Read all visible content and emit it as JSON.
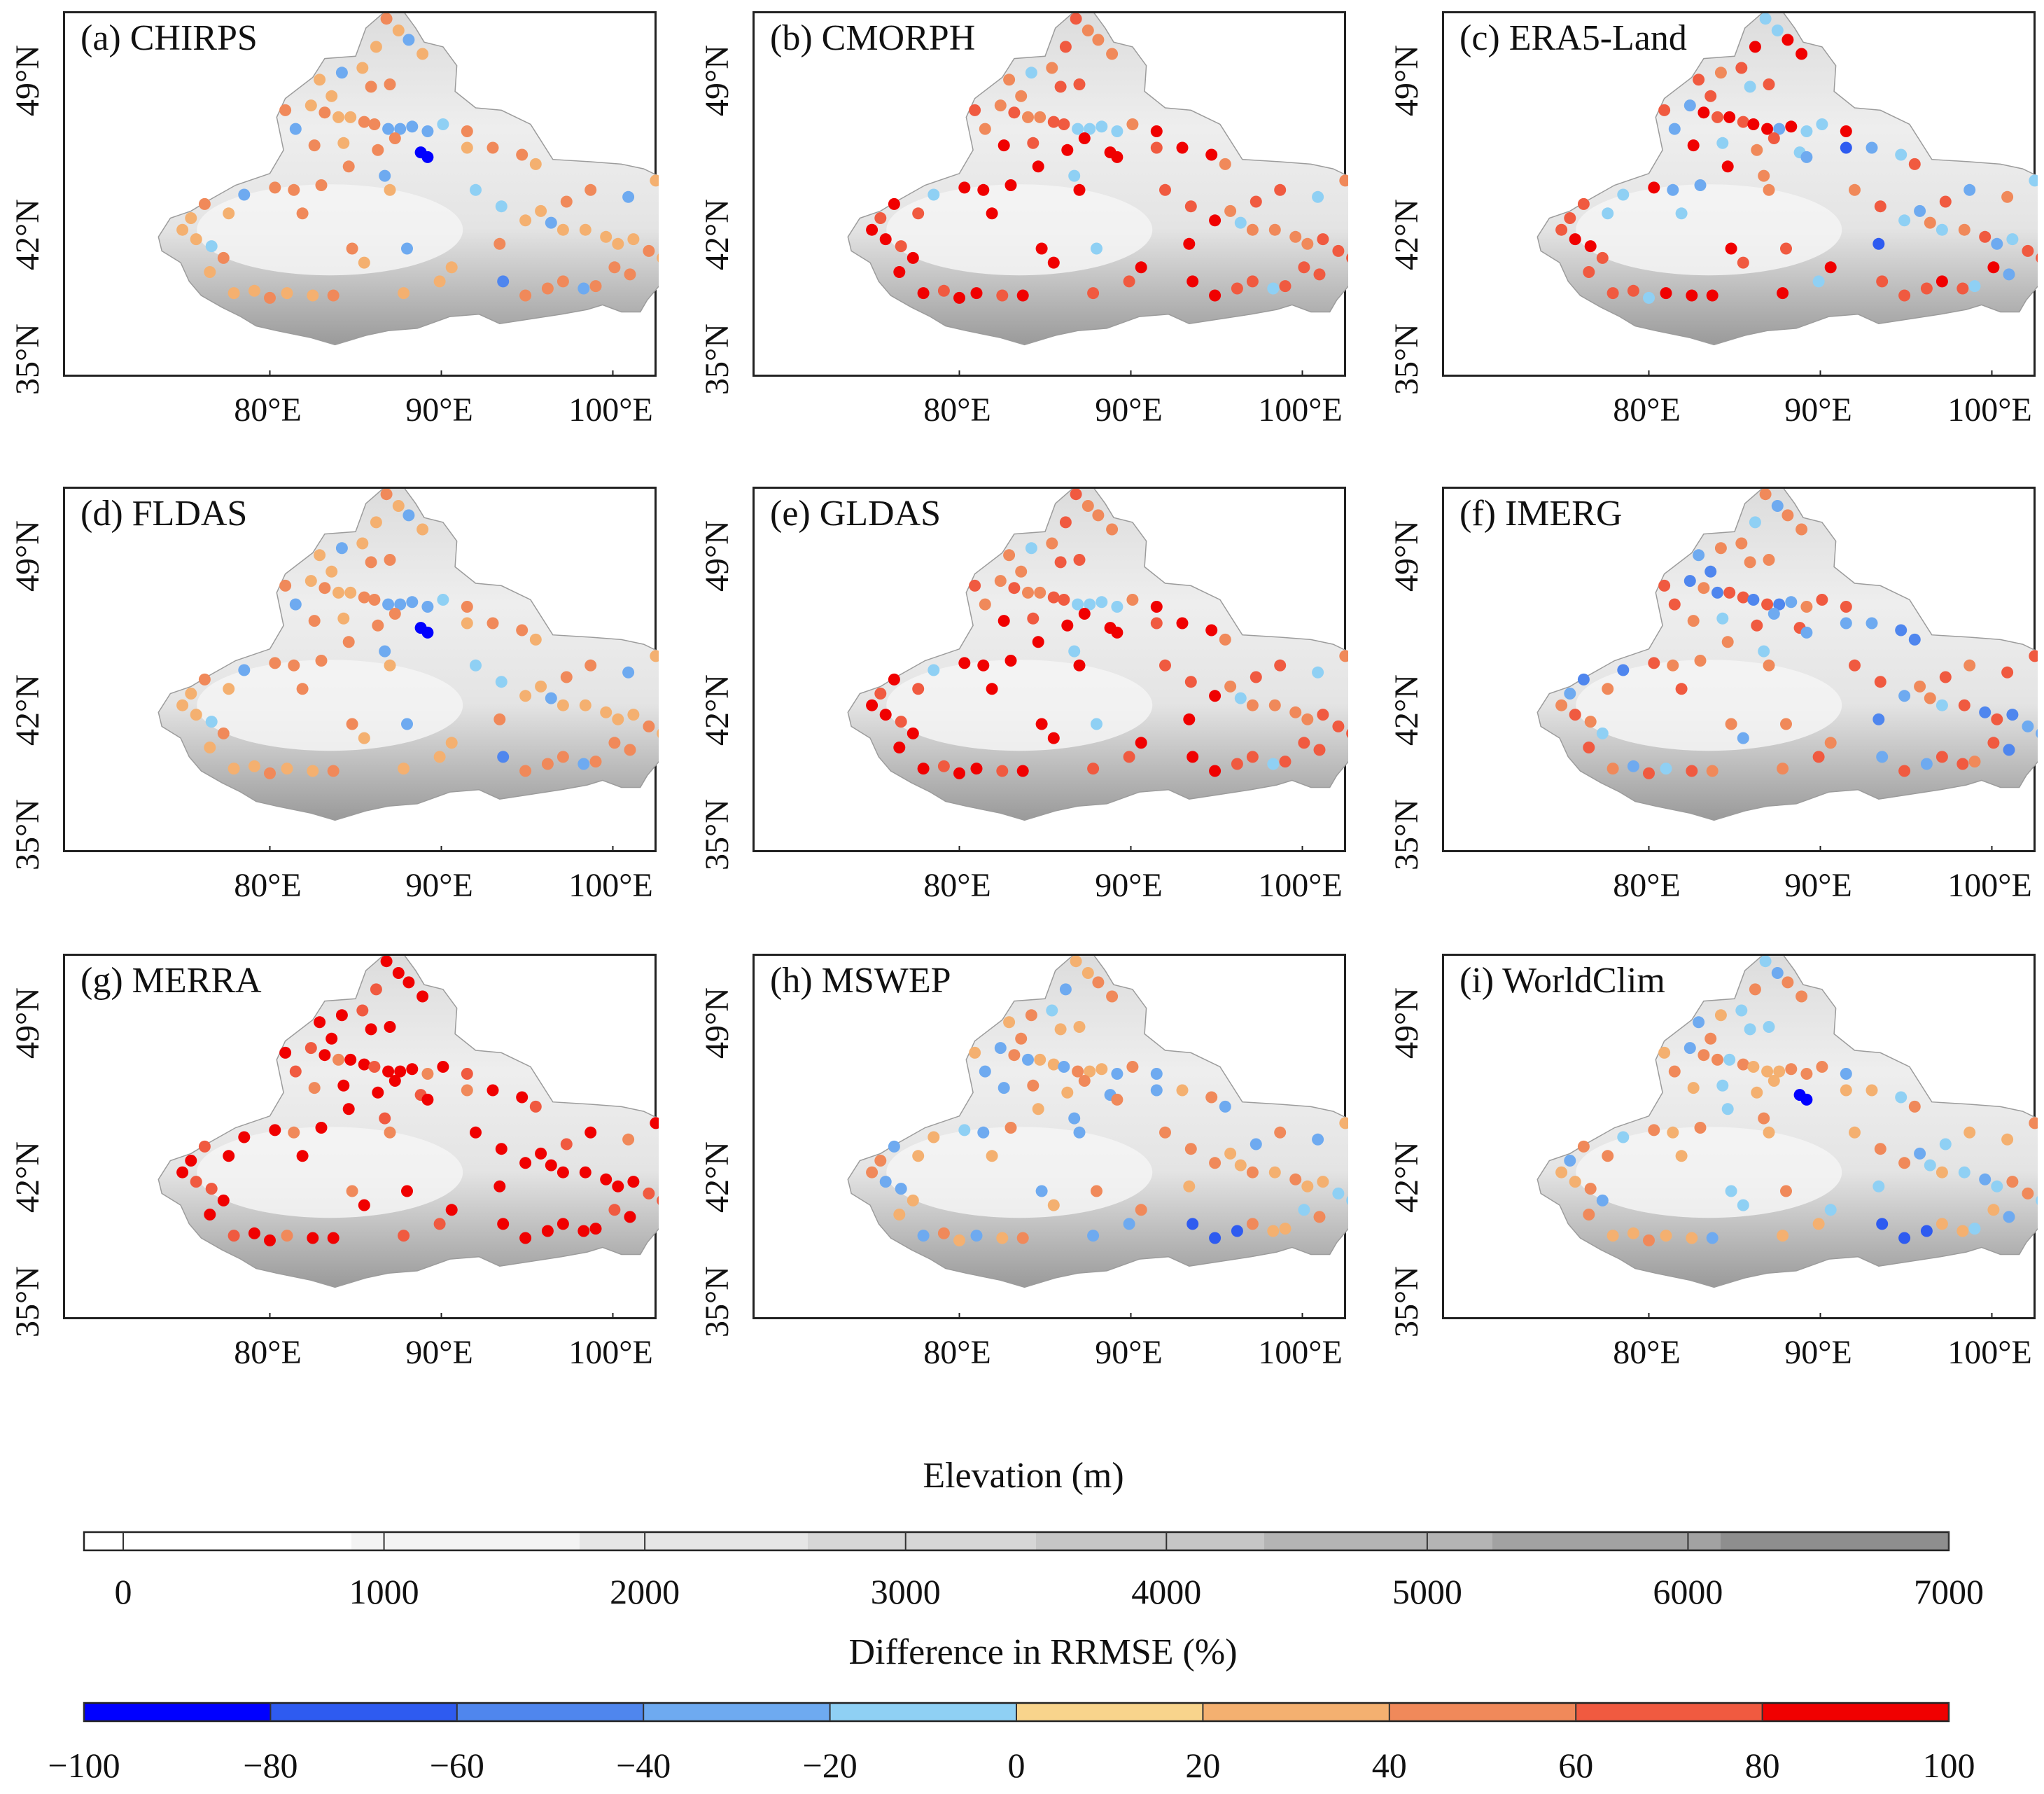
{
  "panels": [
    {
      "id": "a",
      "title": "(a) CHIRPS",
      "scheme": "chirps"
    },
    {
      "id": "b",
      "title": "(b) CMORPH",
      "scheme": "cmorph"
    },
    {
      "id": "c",
      "title": "(c) ERA5-Land",
      "scheme": "era5"
    },
    {
      "id": "d",
      "title": "(d) FLDAS",
      "scheme": "chirps"
    },
    {
      "id": "e",
      "title": "(e) GLDAS",
      "scheme": "cmorph"
    },
    {
      "id": "f",
      "title": "(f) IMERG",
      "scheme": "imerg"
    },
    {
      "id": "g",
      "title": "(g) MERRA",
      "scheme": "merra"
    },
    {
      "id": "h",
      "title": "(h) MSWEP",
      "scheme": "mswep"
    },
    {
      "id": "i",
      "title": "(i) WorldClim",
      "scheme": "worldclim"
    }
  ],
  "lat_ticks": [
    "49°N",
    "42°N",
    "35°N"
  ],
  "lon_ticks": [
    "80°E",
    "90°E",
    "100°E"
  ],
  "elevation_bar": {
    "title": "Elevation (m)",
    "ticks": [
      "0",
      "1000",
      "2000",
      "3000",
      "4000",
      "5000",
      "6000",
      "7000"
    ],
    "colors": [
      "#ffffff",
      "#f4f4f4",
      "#e6e6e6",
      "#d6d6d6",
      "#c6c6c6",
      "#b4b4b4",
      "#a2a2a2",
      "#8e8e8e"
    ]
  },
  "difference_bar": {
    "title": "Difference in RRMSE (%)",
    "ticks": [
      "−100",
      "−80",
      "−60",
      "−40",
      "−20",
      "0",
      "20",
      "40",
      "60",
      "80",
      "100"
    ],
    "colors": [
      "#0000ff",
      "#2e5bf0",
      "#4f86ee",
      "#6eaaf0",
      "#8fd0f4",
      "#f8d48c",
      "#f4b070",
      "#f0895a",
      "#f05a40",
      "#f00000"
    ]
  }
}
